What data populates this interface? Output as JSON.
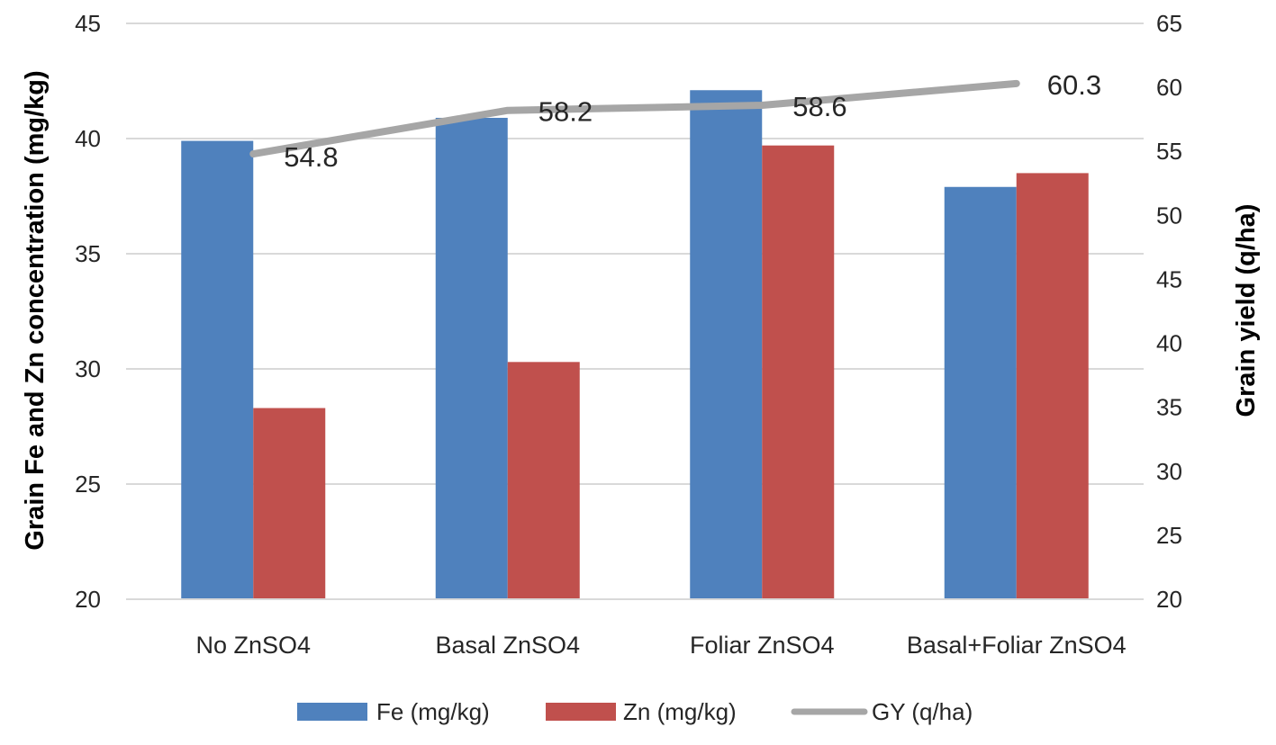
{
  "chart_data": {
    "type": "bar",
    "title": "",
    "categories": [
      "No ZnSO4",
      "Basal ZnSO4",
      "Foliar ZnSO4",
      "Basal+Foliar ZnSO4"
    ],
    "series": [
      {
        "name": "Fe (mg/kg)",
        "type": "bar",
        "axis": "left",
        "color": "#4F81BD",
        "values": [
          39.9,
          40.9,
          42.1,
          37.9
        ]
      },
      {
        "name": "Zn (mg/kg)",
        "type": "bar",
        "axis": "left",
        "color": "#C0504D",
        "values": [
          28.3,
          30.3,
          39.7,
          38.5
        ]
      },
      {
        "name": "GY (q/ha)",
        "type": "line",
        "axis": "right",
        "color": "#A6A6A6",
        "values": [
          54.8,
          58.2,
          58.6,
          60.3
        ],
        "data_labels": [
          "54.8",
          "58.2",
          "58.6",
          "60.3"
        ]
      }
    ],
    "ylabel_left": "Grain Fe and Zn concentration (mg/kg)",
    "ylabel_right": "Grain yield (q/ha)",
    "ylim_left": [
      20,
      45
    ],
    "ylim_right": [
      20,
      65
    ],
    "yticks_left": [
      20,
      25,
      30,
      35,
      40,
      45
    ],
    "yticks_right": [
      20,
      25,
      30,
      35,
      40,
      45,
      50,
      55,
      60,
      65
    ],
    "grid": true,
    "legend_position": "bottom"
  }
}
